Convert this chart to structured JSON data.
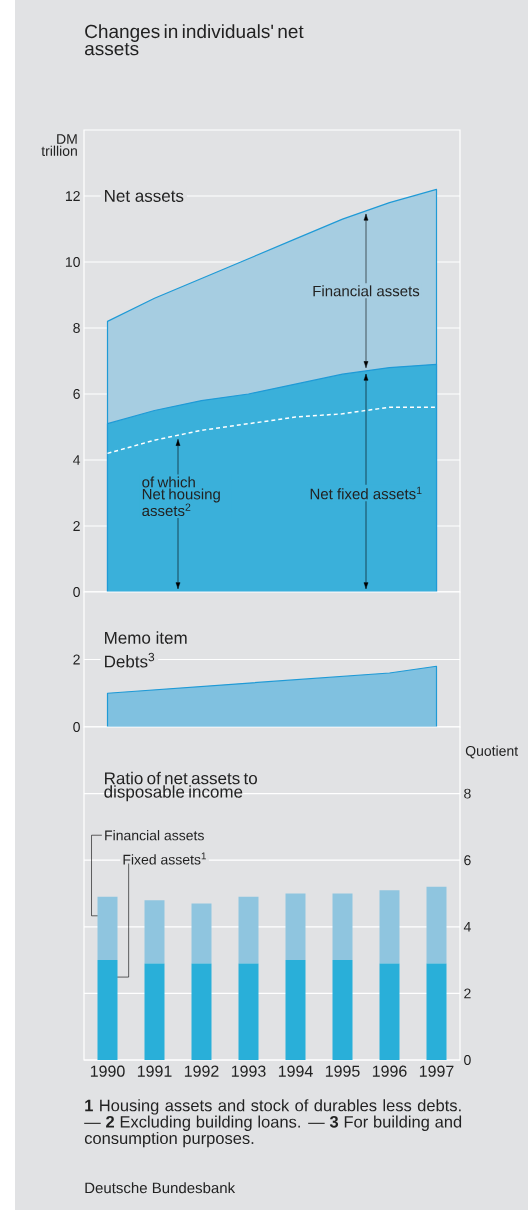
{
  "chart_data": [
    {
      "type": "area",
      "title": "Changes in individuals' net assets",
      "ylabel": "DM trillion",
      "categories": [
        null,
        null,
        null,
        null,
        null,
        null,
        null,
        null
      ],
      "series": [
        {
          "name": "Net assets",
          "color": "#a6cde1",
          "values": [
            8.2,
            8.9,
            9.5,
            10.1,
            10.7,
            11.3,
            11.8,
            12.2
          ]
        },
        {
          "name": "Net fixed assets$^{1}$",
          "color": "#3ab0da",
          "values": [
            5.1,
            5.5,
            5.8,
            6.0,
            6.3,
            6.6,
            6.8,
            6.9
          ]
        },
        {
          "name": "of which Net housing assets$^{2}$",
          "type": "line",
          "line_style": "dashed",
          "color": "#ffffff",
          "values": [
            4.2,
            4.6,
            4.9,
            5.1,
            5.3,
            5.4,
            5.6,
            5.6
          ]
        }
      ],
      "annotations": [
        "Financial assets"
      ],
      "ylim": [
        0,
        14
      ],
      "yticks": [
        0,
        2,
        4,
        6,
        8,
        10,
        12
      ],
      "grid": "y",
      "tick_labels": "y"
    },
    {
      "type": "area",
      "title": "Memo item",
      "categories": [
        null,
        null,
        null,
        null,
        null,
        null,
        null,
        null
      ],
      "series": [
        {
          "name": "Debts$^{3}$",
          "color": "#80c1e0",
          "values": [
            1.0,
            1.1,
            1.2,
            1.3,
            1.4,
            1.5,
            1.6,
            1.8
          ]
        }
      ],
      "ylim": [
        0,
        4
      ],
      "yticks": [
        0,
        2
      ],
      "grid": "y",
      "tick_labels": "y"
    },
    {
      "type": "bar",
      "stacked": true,
      "title": "Ratio of net assets to disposable income",
      "ylabel": "Quotient",
      "categories": [
        "1990",
        "1991",
        "1992",
        "1993",
        "1994",
        "1995",
        "1996",
        "1997"
      ],
      "series": [
        {
          "name": "Fixed assets$^{1}$",
          "color": "#29afd9",
          "values": [
            3.0,
            2.9,
            2.9,
            2.9,
            3.0,
            3.0,
            2.9,
            2.9
          ]
        },
        {
          "name": "Financial assets",
          "color": "#8fc5df",
          "values": [
            1.9,
            1.9,
            1.8,
            2.0,
            2.0,
            2.0,
            2.2,
            2.3
          ]
        }
      ],
      "annotations": [
        "**1** Housing assets and stock of durables less debts. — **2** Excluding building loans. — **3** For building and consumption purposes.",
        "Deutsche Bundesbank"
      ],
      "ylim": [
        0,
        10
      ],
      "yticks": [
        0,
        2,
        4,
        6,
        8
      ],
      "grid": "y"
    }
  ]
}
